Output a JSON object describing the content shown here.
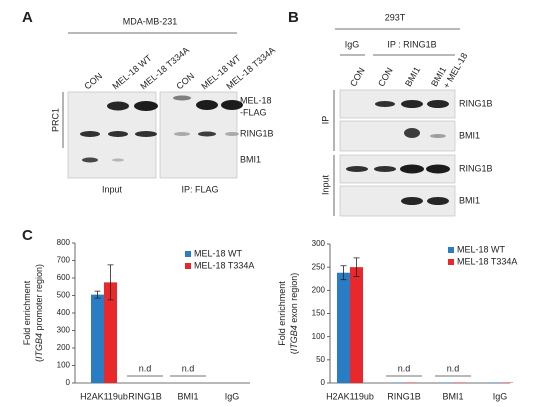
{
  "panel_a": {
    "label": "A",
    "cell_line": "MDA-MB-231",
    "lanes": [
      "CON",
      "MEL-18 WT",
      "MEL-18 T334A",
      "CON",
      "MEL-18 WT",
      "MEL-18 T334A"
    ],
    "side_label": "PRC1",
    "row_labels": [
      "MEL-18",
      "-FLAG",
      "RING1B",
      "BMI1"
    ],
    "groups": [
      "Input",
      "IP: FLAG"
    ]
  },
  "panel_b": {
    "label": "B",
    "cell_line": "293T",
    "groups": [
      "IgG",
      "IP : RING1B"
    ],
    "lanes": [
      [
        "CON"
      ],
      [
        "CON"
      ],
      [
        "BMI1"
      ],
      [
        "BMI1",
        "+ MEL-18"
      ]
    ],
    "side_labels": [
      "IP",
      "Input"
    ],
    "row_labels": [
      "RING1B",
      "BMI1",
      "RING1B",
      "BMI1"
    ]
  },
  "panel_c_label": "C",
  "chart_data": [
    {
      "type": "bar",
      "ylabel": [
        "Fold enrichment",
        "(",
        "ITGB4",
        " promoter region)"
      ],
      "categories": [
        "H2AK119ub",
        "RING1B",
        "BMI1",
        "IgG"
      ],
      "series": [
        {
          "name": "MEL-18 WT",
          "color": "#2a7cc4",
          "values": [
            505,
            0,
            0,
            0
          ],
          "errors": [
            20,
            null,
            null,
            null
          ]
        },
        {
          "name": "MEL-18 T334A",
          "color": "#e8282b",
          "values": [
            575,
            0,
            0,
            0
          ],
          "errors": [
            100,
            null,
            null,
            null
          ]
        }
      ],
      "ylim": [
        0,
        800
      ],
      "yticks": [
        0,
        100,
        200,
        300,
        400,
        500,
        600,
        700,
        800
      ],
      "nd_labels": [
        "n.d",
        "n.d"
      ],
      "legend": "top-right"
    },
    {
      "type": "bar",
      "ylabel": [
        "Fold enrichment",
        "(",
        "ITGB4",
        " exon region)"
      ],
      "categories": [
        "H2AK119ub",
        "RING1B",
        "BMI1",
        "IgG"
      ],
      "series": [
        {
          "name": "MEL-18 WT",
          "color": "#2a7cc4",
          "values": [
            238,
            1,
            1,
            1
          ],
          "errors": [
            15,
            null,
            null,
            null
          ]
        },
        {
          "name": "MEL-18 T334A",
          "color": "#e8282b",
          "values": [
            250,
            1,
            1,
            1
          ],
          "errors": [
            20,
            null,
            null,
            null
          ]
        }
      ],
      "ylim": [
        0,
        300
      ],
      "yticks": [
        0,
        50,
        100,
        150,
        200,
        250,
        300
      ],
      "nd_labels": [
        "n.d",
        "n.d"
      ],
      "legend": "top-right"
    }
  ]
}
